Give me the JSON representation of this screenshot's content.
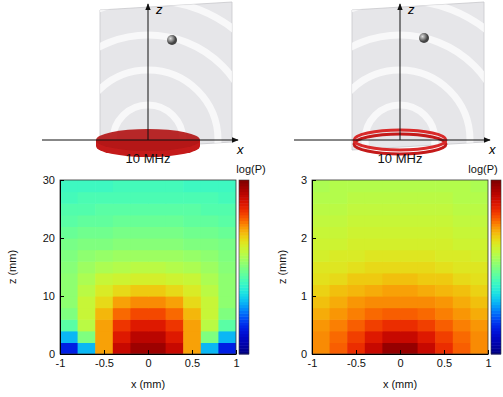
{
  "diagram": {
    "panels": [
      {
        "axis_labels": [
          "z",
          "x"
        ]
      },
      {
        "axis_labels": [
          "z",
          "x"
        ]
      }
    ]
  },
  "chart_data": [
    {
      "type": "heatmap",
      "title": "10 MHz",
      "x_label": "x (mm)",
      "y_label": "z (mm)",
      "xlim": [
        -1,
        1
      ],
      "ylim": [
        0,
        30
      ],
      "xticks": [
        -1,
        -0.5,
        0,
        0.5,
        1
      ],
      "yticks": [
        0,
        10,
        20,
        30
      ],
      "x": [
        -0.9,
        -0.7,
        -0.5,
        -0.3,
        -0.1,
        0.1,
        0.3,
        0.5,
        0.7,
        0.9
      ],
      "y": [
        1,
        3,
        5,
        7,
        9,
        11,
        13,
        15,
        17,
        19,
        21,
        23,
        25,
        27,
        29
      ],
      "cells": [
        [
          0.15,
          0.3,
          0.72,
          0.9,
          0.96,
          0.96,
          0.9,
          0.72,
          0.3,
          0.15
        ],
        [
          0.3,
          0.5,
          0.72,
          0.86,
          0.92,
          0.92,
          0.86,
          0.72,
          0.5,
          0.3
        ],
        [
          0.45,
          0.58,
          0.72,
          0.82,
          0.86,
          0.86,
          0.82,
          0.72,
          0.58,
          0.45
        ],
        [
          0.5,
          0.6,
          0.7,
          0.77,
          0.8,
          0.8,
          0.77,
          0.7,
          0.6,
          0.5
        ],
        [
          0.52,
          0.6,
          0.66,
          0.72,
          0.74,
          0.74,
          0.72,
          0.66,
          0.6,
          0.52
        ],
        [
          0.52,
          0.58,
          0.63,
          0.66,
          0.68,
          0.68,
          0.66,
          0.63,
          0.58,
          0.52
        ],
        [
          0.52,
          0.56,
          0.6,
          0.61,
          0.62,
          0.62,
          0.61,
          0.6,
          0.56,
          0.52
        ],
        [
          0.51,
          0.54,
          0.56,
          0.57,
          0.58,
          0.58,
          0.57,
          0.56,
          0.54,
          0.51
        ],
        [
          0.5,
          0.52,
          0.53,
          0.54,
          0.54,
          0.54,
          0.54,
          0.53,
          0.52,
          0.5
        ],
        [
          0.49,
          0.5,
          0.5,
          0.51,
          0.51,
          0.51,
          0.51,
          0.5,
          0.5,
          0.49
        ],
        [
          0.47,
          0.48,
          0.48,
          0.49,
          0.49,
          0.49,
          0.49,
          0.48,
          0.48,
          0.47
        ],
        [
          0.45,
          0.46,
          0.46,
          0.47,
          0.47,
          0.47,
          0.47,
          0.46,
          0.46,
          0.45
        ],
        [
          0.44,
          0.44,
          0.45,
          0.45,
          0.45,
          0.45,
          0.45,
          0.45,
          0.44,
          0.44
        ],
        [
          0.42,
          0.43,
          0.43,
          0.43,
          0.43,
          0.43,
          0.43,
          0.43,
          0.43,
          0.42
        ],
        [
          0.41,
          0.41,
          0.41,
          0.42,
          0.42,
          0.42,
          0.42,
          0.41,
          0.41,
          0.41
        ]
      ],
      "colorbar": {
        "label": "log(P)",
        "range": [
          0,
          1
        ]
      }
    },
    {
      "type": "heatmap",
      "title": "10 MHz",
      "x_label": "x (mm)",
      "y_label": "z (mm)",
      "xlim": [
        -1,
        1
      ],
      "ylim": [
        0,
        3
      ],
      "xticks": [
        -1,
        -0.5,
        0,
        0.5,
        1
      ],
      "yticks": [
        0,
        1,
        2,
        3
      ],
      "x": [
        -0.9,
        -0.7,
        -0.5,
        -0.3,
        -0.1,
        0.1,
        0.3,
        0.5,
        0.7,
        0.9
      ],
      "y": [
        0.1,
        0.3,
        0.5,
        0.7,
        0.9,
        1.1,
        1.3,
        1.5,
        1.7,
        1.9,
        2.1,
        2.3,
        2.5,
        2.7,
        2.9
      ],
      "cells": [
        [
          0.74,
          0.78,
          0.83,
          0.9,
          0.97,
          0.97,
          0.9,
          0.83,
          0.78,
          0.74
        ],
        [
          0.74,
          0.77,
          0.81,
          0.86,
          0.9,
          0.9,
          0.86,
          0.81,
          0.77,
          0.74
        ],
        [
          0.73,
          0.75,
          0.78,
          0.81,
          0.83,
          0.83,
          0.81,
          0.78,
          0.75,
          0.73
        ],
        [
          0.71,
          0.73,
          0.75,
          0.77,
          0.78,
          0.78,
          0.77,
          0.75,
          0.73,
          0.71
        ],
        [
          0.69,
          0.71,
          0.73,
          0.74,
          0.74,
          0.74,
          0.74,
          0.73,
          0.71,
          0.69
        ],
        [
          0.67,
          0.69,
          0.7,
          0.71,
          0.72,
          0.72,
          0.71,
          0.7,
          0.69,
          0.67
        ],
        [
          0.65,
          0.66,
          0.68,
          0.68,
          0.69,
          0.69,
          0.68,
          0.68,
          0.66,
          0.65
        ],
        [
          0.64,
          0.64,
          0.65,
          0.66,
          0.66,
          0.66,
          0.66,
          0.65,
          0.64,
          0.64
        ],
        [
          0.62,
          0.63,
          0.63,
          0.64,
          0.64,
          0.64,
          0.64,
          0.63,
          0.63,
          0.62
        ],
        [
          0.61,
          0.61,
          0.62,
          0.62,
          0.62,
          0.62,
          0.62,
          0.62,
          0.61,
          0.61
        ],
        [
          0.6,
          0.6,
          0.61,
          0.61,
          0.61,
          0.61,
          0.61,
          0.61,
          0.6,
          0.6
        ],
        [
          0.59,
          0.59,
          0.6,
          0.6,
          0.6,
          0.6,
          0.6,
          0.6,
          0.59,
          0.59
        ],
        [
          0.58,
          0.58,
          0.59,
          0.59,
          0.59,
          0.59,
          0.59,
          0.59,
          0.58,
          0.58
        ],
        [
          0.57,
          0.57,
          0.58,
          0.58,
          0.58,
          0.58,
          0.58,
          0.58,
          0.57,
          0.57
        ],
        [
          0.56,
          0.57,
          0.57,
          0.57,
          0.57,
          0.57,
          0.57,
          0.57,
          0.57,
          0.56
        ]
      ],
      "colorbar": {
        "label": "log(P)",
        "range": [
          0,
          1
        ]
      }
    }
  ]
}
